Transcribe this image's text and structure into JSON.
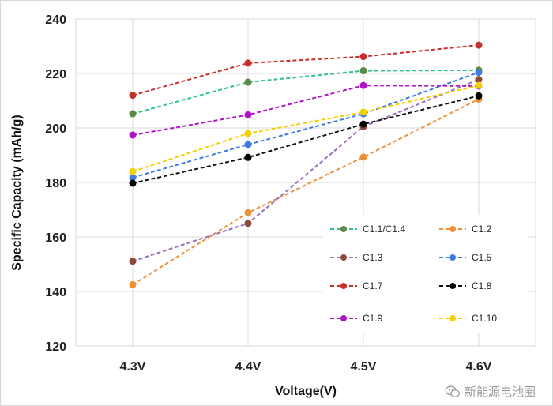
{
  "chart_data": {
    "type": "line",
    "xlabel": "Voltage(V)",
    "ylabel": "Specific Capacity (mAh/g)",
    "categories": [
      "4.3V",
      "4.4V",
      "4.5V",
      "4.6V"
    ],
    "ylim": [
      120,
      240
    ],
    "yticks": [
      120,
      140,
      160,
      180,
      200,
      220,
      240
    ],
    "grid": "horizontal and vertical",
    "legend_position": "inside bottom-right, two columns",
    "series": [
      {
        "name": "C1.1/C1.4",
        "color": "#5a8a4a",
        "line_color": "#33c28a",
        "values": [
          205.2,
          216.8,
          221.0,
          221.2
        ]
      },
      {
        "name": "C1.2",
        "color": "#f0913a",
        "line_color": "#f0913a",
        "values": [
          142.5,
          168.9,
          189.3,
          210.6
        ]
      },
      {
        "name": "C1.3",
        "color": "#8b4a3c",
        "line_color": "#9b6fb8",
        "values": [
          151.1,
          165.0,
          200.5,
          217.8
        ]
      },
      {
        "name": "C1.5",
        "color": "#3f7be0",
        "line_color": "#3f7be0",
        "values": [
          181.8,
          193.9,
          205.2,
          220.4
        ]
      },
      {
        "name": "C1.7",
        "color": "#c8302c",
        "line_color": "#c8302c",
        "values": [
          212.0,
          223.8,
          226.2,
          230.4
        ]
      },
      {
        "name": "C1.8",
        "color": "#000000",
        "line_color": "#111111",
        "values": [
          179.7,
          189.2,
          201.4,
          211.8
        ]
      },
      {
        "name": "C1.9",
        "color": "#b012c8",
        "line_color": "#b012c8",
        "values": [
          197.4,
          204.8,
          215.6,
          215.4
        ]
      },
      {
        "name": "C1.10",
        "color": "#f5d000",
        "line_color": "#f5d000",
        "values": [
          184.0,
          198.0,
          205.8,
          215.6
        ]
      }
    ]
  },
  "watermark": {
    "icon": "wechat-logo",
    "text": "新能源电池圈"
  }
}
